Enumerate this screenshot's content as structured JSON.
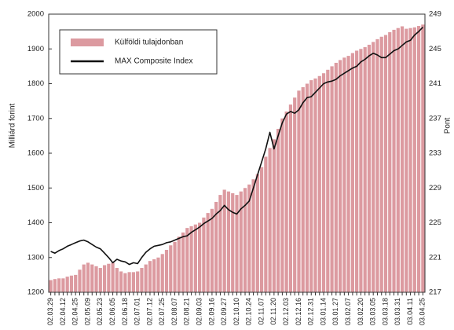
{
  "chart_data": {
    "type": "bar",
    "ylabel": "Milliárd forint",
    "y2label": "Pont",
    "legend": "upper left",
    "categories": [
      "02.03.29",
      null,
      null,
      "02.04.12",
      null,
      null,
      "02.04.25",
      null,
      null,
      "02.05.09",
      null,
      null,
      "02.05.23",
      null,
      null,
      "02.06.05",
      null,
      null,
      "02.06.18",
      null,
      null,
      "02.07.01",
      null,
      null,
      "02.07.12",
      null,
      null,
      "02.07.25",
      null,
      null,
      "02.08.07",
      null,
      null,
      "02.08.21",
      null,
      null,
      "02.09.03",
      null,
      null,
      "02.09.16",
      null,
      null,
      "02.09.27",
      null,
      null,
      "02.10.10",
      null,
      null,
      "02.10.24",
      null,
      null,
      "02.11.07",
      null,
      null,
      "02.11.20",
      null,
      null,
      "02.12.03",
      null,
      null,
      "02.12.16",
      null,
      null,
      "02.12.31",
      null,
      null,
      "03.01.14",
      null,
      null,
      "03.01.27",
      null,
      null,
      "03.02.07",
      null,
      null,
      "03.02.20",
      null,
      null,
      "03.03.05",
      null,
      null,
      "03.03.18",
      null,
      null,
      "03.03.31",
      null,
      null,
      "03.04.11",
      null,
      null,
      "03.04.25"
    ],
    "series": [
      {
        "name": "Külföldi tulajdonban",
        "type": "bar",
        "color": "#dc9aa0",
        "values": [
          1235,
          1238,
          1240,
          1240,
          1245,
          1248,
          1250,
          1265,
          1280,
          1285,
          1280,
          1275,
          1270,
          1278,
          1282,
          1285,
          1270,
          1260,
          1255,
          1258,
          1258,
          1260,
          1270,
          1280,
          1290,
          1295,
          1300,
          1310,
          1322,
          1335,
          1345,
          1360,
          1372,
          1385,
          1390,
          1395,
          1400,
          1415,
          1428,
          1440,
          1460,
          1480,
          1495,
          1490,
          1485,
          1480,
          1490,
          1500,
          1510,
          1525,
          1540,
          1560,
          1590,
          1615,
          1640,
          1670,
          1700,
          1720,
          1740,
          1760,
          1780,
          1790,
          1800,
          1810,
          1815,
          1822,
          1830,
          1840,
          1850,
          1860,
          1868,
          1875,
          1880,
          1888,
          1895,
          1900,
          1905,
          1912,
          1920,
          1928,
          1935,
          1940,
          1948,
          1955,
          1960,
          1965,
          1958,
          1960,
          1962,
          1966,
          1970
        ]
      },
      {
        "name": "MAX Composite Index",
        "type": "line",
        "axis": "y2",
        "color": "#111111",
        "values": [
          221.7,
          221.5,
          221.8,
          222,
          222.3,
          222.5,
          222.7,
          222.9,
          223,
          222.8,
          222.5,
          222.2,
          222,
          221.5,
          221,
          220.4,
          220.8,
          220.6,
          220.5,
          220.2,
          220.4,
          220.3,
          221,
          221.6,
          222,
          222.3,
          222.4,
          222.5,
          222.7,
          222.8,
          223,
          223.2,
          223.4,
          223.5,
          223.9,
          224.2,
          224.5,
          224.9,
          225.2,
          225.5,
          226,
          226.4,
          227,
          226.5,
          226.2,
          226,
          226.6,
          227,
          227.5,
          229,
          230.5,
          232,
          233.5,
          235.4,
          233.5,
          235,
          236.5,
          237.5,
          237.8,
          237.6,
          238,
          238.8,
          239.4,
          239.5,
          240,
          240.5,
          241,
          241.2,
          241.3,
          241.5,
          241.9,
          242.2,
          242.5,
          242.8,
          243,
          243.5,
          243.8,
          244.2,
          244.5,
          244.3,
          244,
          244,
          244.4,
          244.8,
          245,
          245.4,
          245.8,
          246,
          246.6,
          247,
          247.5
        ]
      }
    ],
    "ylim": [
      1200,
      2000
    ],
    "yticks": [
      1200,
      1300,
      1400,
      1500,
      1600,
      1700,
      1800,
      1900,
      2000
    ],
    "y2lim": [
      217,
      249
    ],
    "y2ticks": [
      217,
      221,
      225,
      229,
      233,
      237,
      241,
      245,
      249
    ]
  }
}
